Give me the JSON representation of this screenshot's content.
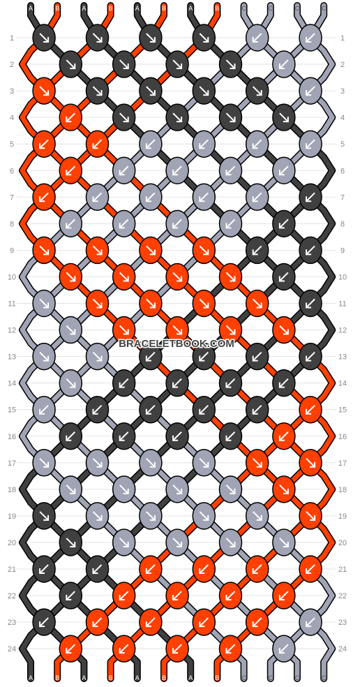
{
  "watermark": "BRACELETBOOK.COM",
  "colors": {
    "A": "#404040",
    "B": "#ff4000",
    "C": "#a0a4b4"
  },
  "grid_lines": "#e3e3e3",
  "top_strands": [
    "A",
    "B",
    "A",
    "B",
    "A",
    "B",
    "A",
    "B",
    "C",
    "C",
    "C",
    "C"
  ],
  "bottom_strands": [
    "A",
    "B",
    "A",
    "B",
    "A",
    "B",
    "A",
    "B",
    "C",
    "C",
    "C",
    "C"
  ],
  "row_labels": [
    "1",
    "2",
    "3",
    "4",
    "5",
    "6",
    "7",
    "8",
    "9",
    "10",
    "11",
    "12",
    "13",
    "14",
    "15",
    "16",
    "17",
    "18",
    "19",
    "20",
    "21",
    "22",
    "23",
    "24"
  ],
  "rows": [
    [
      "A>",
      "A>",
      "A>",
      "A>",
      "C<",
      "C<"
    ],
    [
      "A>",
      "A>",
      "A>",
      "A>",
      "C<"
    ],
    [
      "B>",
      "A>",
      "A>",
      "A>",
      "A>",
      "C<"
    ],
    [
      "B<",
      "A>",
      "A>",
      "A>",
      "A>"
    ],
    [
      "B<",
      "B<",
      "C<",
      "C<",
      "C<",
      "C<"
    ],
    [
      "B<",
      "C<",
      "C<",
      "C<",
      "C<"
    ],
    [
      "B<",
      "C<",
      "C<",
      "C<",
      "C<",
      "A<"
    ],
    [
      "C<",
      "C<",
      "C<",
      "C<",
      "A<"
    ],
    [
      "B>",
      "B>",
      "B>",
      "B>",
      "A<",
      "A<"
    ],
    [
      "B>",
      "B>",
      "B>",
      "B>",
      "A<"
    ],
    [
      "C>",
      "B>",
      "B>",
      "B>",
      "B>",
      "A<"
    ],
    [
      "C>",
      "B>",
      "B>",
      "B>",
      "B>"
    ],
    [
      "C>",
      "C>",
      "A<",
      "A<",
      "A<",
      "A<"
    ],
    [
      "C>",
      "A<",
      "A<",
      "A<",
      "A<"
    ],
    [
      "C<",
      "A<",
      "A<",
      "A<",
      "A<",
      "B<"
    ],
    [
      "A<",
      "A<",
      "A<",
      "A<",
      "B<"
    ],
    [
      "C>",
      "C>",
      "C>",
      "C>",
      "B>",
      "B>"
    ],
    [
      "C>",
      "C>",
      "C>",
      "C>",
      "B>"
    ],
    [
      "A>",
      "C>",
      "C>",
      "C>",
      "C>",
      "B>"
    ],
    [
      "A>",
      "C>",
      "C>",
      "C>",
      "C>"
    ],
    [
      "A<",
      "A<",
      "B<",
      "B<",
      "B<",
      "B<"
    ],
    [
      "A<",
      "B<",
      "B<",
      "B<",
      "B<"
    ],
    [
      "A<",
      "B<",
      "B<",
      "B<",
      "B<",
      "C<"
    ],
    [
      "B<",
      "B<",
      "B<",
      "B<",
      "C<"
    ]
  ]
}
